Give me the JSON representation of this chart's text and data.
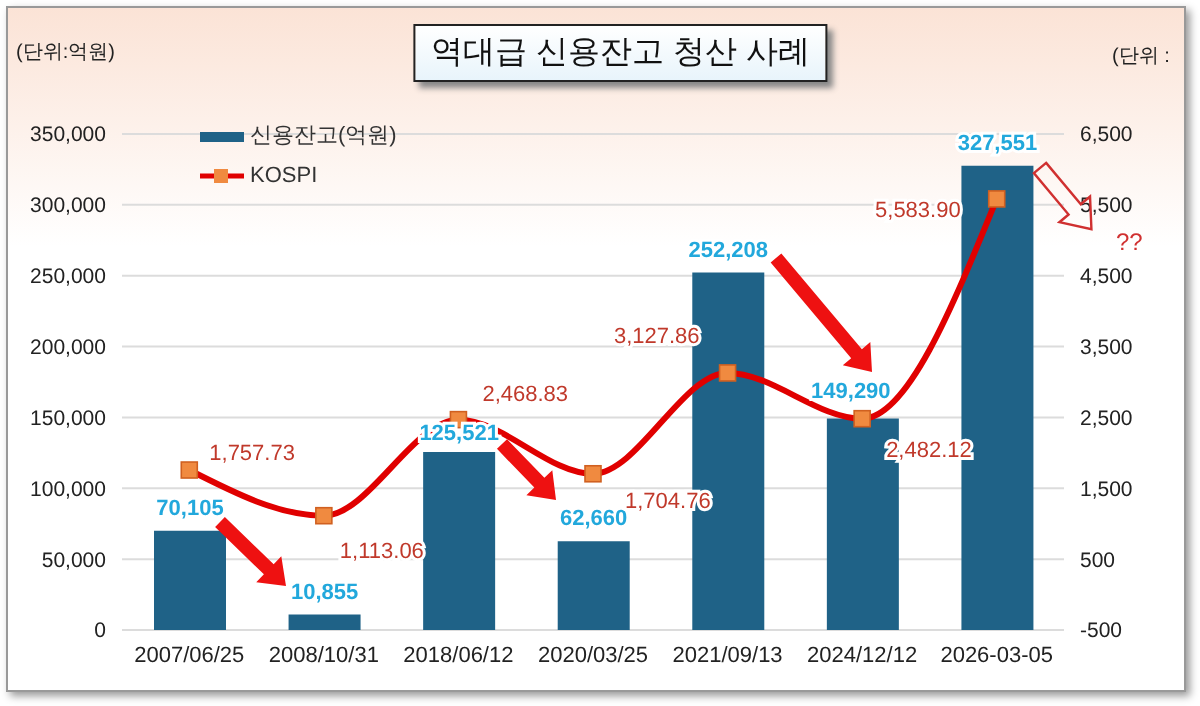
{
  "chart_data": {
    "type": "bar",
    "title": "역대급 신용잔고 청산 사례",
    "ylabel": "(단위:억원)",
    "y2label": "(단위 :",
    "categories": [
      "2007/06/25",
      "2008/10/31",
      "2018/06/12",
      "2020/03/25",
      "2021/09/13",
      "2024/12/12",
      "2026-03-05"
    ],
    "series": [
      {
        "name": "신용잔고(억원)",
        "color": "#1f6287",
        "values": [
          70105,
          10855,
          125521,
          62660,
          252208,
          149290,
          327551
        ],
        "value_labels": [
          "70,105",
          "10,855",
          "125,521",
          "62,660",
          "252,208",
          "149,290",
          "327,551"
        ]
      },
      {
        "name": "KOSPI",
        "type": "line",
        "axis": "y2",
        "color": "#e00000",
        "values": [
          1757.73,
          1113.06,
          2468.83,
          1704.76,
          3127.86,
          2482.12,
          5583.9
        ],
        "value_labels": [
          "1,757.73",
          "1,113.06",
          "2,468.83",
          "1,704.76",
          "3,127.86",
          "2,482.12",
          "5,583.90"
        ]
      }
    ],
    "ylim": [
      0,
      350000
    ],
    "yticks": [
      0,
      {
        "value": 50000,
        "label": "50,000"
      },
      {
        "value": 100000,
        "label": "100,000"
      },
      {
        "value": 150000,
        "label": "150,000"
      },
      {
        "value": 200000,
        "label": "200,000"
      },
      {
        "value": 250000,
        "label": "250,000"
      },
      {
        "value": 300000,
        "label": "300,000"
      },
      {
        "value": 350000,
        "label": "350,000"
      }
    ],
    "y2lim": [
      -500,
      6500
    ],
    "y2ticks": [
      -500,
      500,
      {
        "value": 1500,
        "label": "1,500"
      },
      {
        "value": 2500,
        "label": "2,500"
      },
      {
        "value": 3500,
        "label": "3,500"
      },
      {
        "value": 4500,
        "label": "4,500"
      },
      {
        "value": 5500,
        "label": "5,500"
      },
      {
        "value": 6500,
        "label": "6,500"
      }
    ],
    "grid": "y",
    "legend": "top left",
    "marker": "square",
    "line_style": "solid",
    "annotations": [
      "??"
    ]
  }
}
